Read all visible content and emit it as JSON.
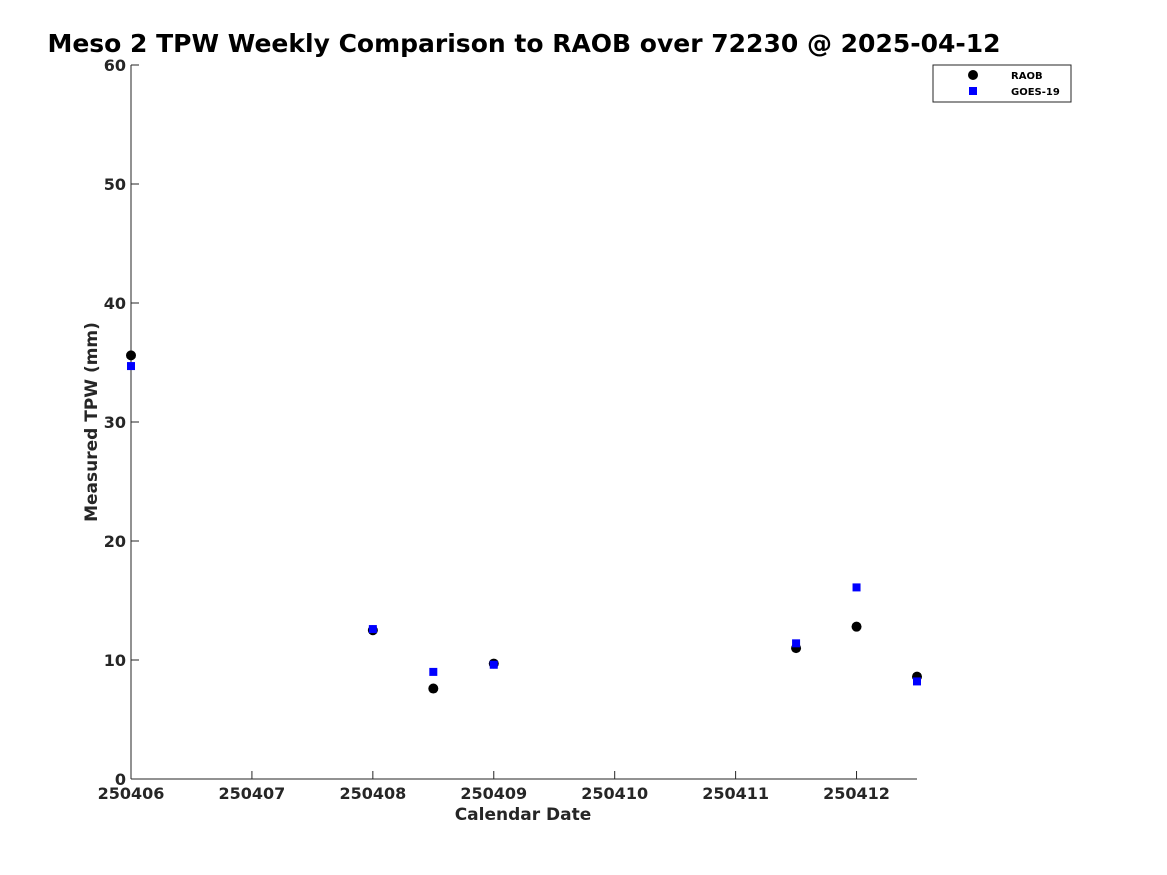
{
  "chart_data": {
    "type": "scatter",
    "title": "Meso 2 TPW Weekly Comparison to RAOB over 72230 @ 2025-04-12",
    "xlabel": "Calendar Date",
    "ylabel": "Measured TPW (mm)",
    "xlim": [
      0,
      6.5
    ],
    "ylim": [
      0,
      60
    ],
    "x_ticks": [
      0,
      1,
      2,
      3,
      4,
      5,
      6
    ],
    "x_tick_labels": [
      "250406",
      "250407",
      "250408",
      "250409",
      "250410",
      "250411",
      "250412"
    ],
    "y_ticks": [
      0,
      10,
      20,
      30,
      40,
      50,
      60
    ],
    "y_tick_labels": [
      "0",
      "10",
      "20",
      "30",
      "40",
      "50",
      "60"
    ],
    "grid": false,
    "legend_position": "top-right",
    "series": [
      {
        "name": "RAOB",
        "marker": "circle",
        "color": "#000000",
        "x": [
          0,
          2,
          2.5,
          3,
          5.5,
          6,
          6.5
        ],
        "values": [
          35.6,
          12.5,
          7.6,
          9.7,
          11.0,
          12.8,
          8.6
        ]
      },
      {
        "name": "GOES-19",
        "marker": "square",
        "color": "#0000ff",
        "x": [
          0,
          2,
          2.5,
          3,
          5.5,
          6,
          6.5
        ],
        "values": [
          34.7,
          12.6,
          9.0,
          9.6,
          11.4,
          16.1,
          8.2
        ]
      }
    ]
  }
}
